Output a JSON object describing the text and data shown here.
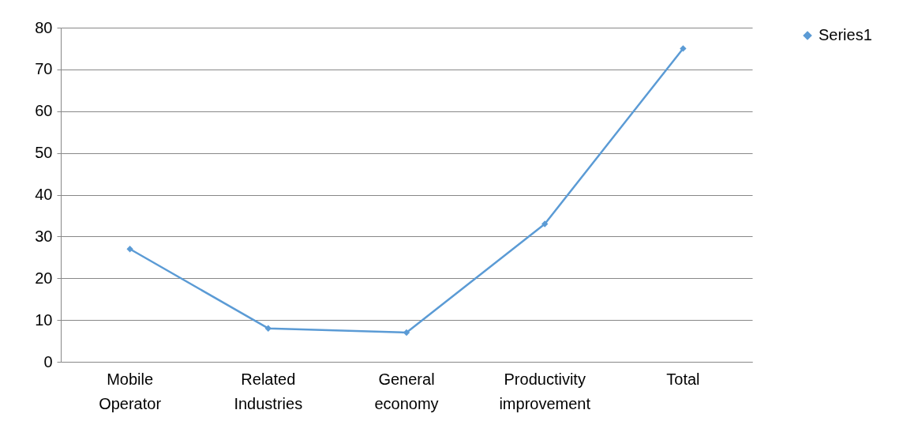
{
  "chart_data": {
    "type": "line",
    "categories": [
      "Mobile Operator",
      "Related Industries",
      "General economy",
      "Productivity improvement",
      "Total"
    ],
    "series": [
      {
        "name": "Series1",
        "color": "#5b9bd5",
        "values": [
          27,
          8,
          7,
          33,
          75
        ]
      }
    ],
    "ylim": [
      0,
      80
    ],
    "yticks": [
      0,
      10,
      20,
      30,
      40,
      50,
      60,
      70,
      80
    ],
    "grid": "y",
    "legend": "right",
    "marker": "diamond",
    "line_style": "solid"
  }
}
